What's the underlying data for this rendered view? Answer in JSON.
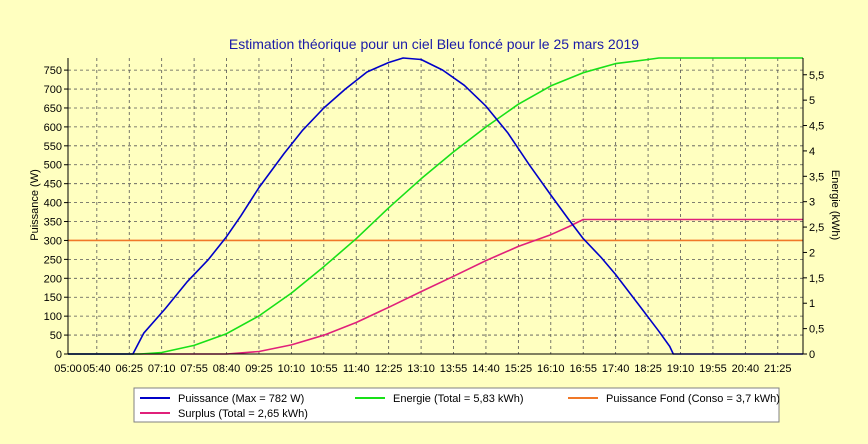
{
  "chart_data": {
    "type": "line",
    "title": "Estimation théorique pour un ciel Bleu foncé pour le 25 mars 2019",
    "ylabel_left": "Puissance (W)",
    "ylabel_right": "Energie (kWh)",
    "ylim_left": [
      0,
      782
    ],
    "ylim_right": [
      0,
      5.83
    ],
    "left_ticks": [
      "0",
      "50",
      "100",
      "150",
      "200",
      "250",
      "300",
      "350",
      "400",
      "450",
      "500",
      "550",
      "600",
      "650",
      "700",
      "750"
    ],
    "right_ticks": [
      "0",
      "0,5",
      "1",
      "1,5",
      "2",
      "2,5",
      "3",
      "3,5",
      "4",
      "4,5",
      "5",
      "5,5"
    ],
    "x_ticks": [
      "05:00",
      "05:40",
      "06:25",
      "07:10",
      "07:55",
      "08:40",
      "09:25",
      "10:10",
      "10:55",
      "11:40",
      "12:25",
      "13:10",
      "13:55",
      "14:40",
      "15:25",
      "16:10",
      "16:55",
      "17:40",
      "18:25",
      "19:10",
      "19:55",
      "20:40",
      "21:25"
    ],
    "grid": true,
    "legend_position": "bottom",
    "series": [
      {
        "name": "Puissance (Max = 782 W)",
        "color": "#0000c8",
        "axis": "left",
        "points": [
          [
            "05:00",
            0
          ],
          [
            "06:30",
            0
          ],
          [
            "06:45",
            55
          ],
          [
            "07:15",
            120
          ],
          [
            "07:45",
            190
          ],
          [
            "08:15",
            250
          ],
          [
            "08:40",
            310
          ],
          [
            "09:00",
            365
          ],
          [
            "09:25",
            440
          ],
          [
            "10:00",
            530
          ],
          [
            "10:25",
            590
          ],
          [
            "10:55",
            650
          ],
          [
            "11:25",
            700
          ],
          [
            "11:55",
            745
          ],
          [
            "12:25",
            770
          ],
          [
            "12:45",
            782
          ],
          [
            "13:10",
            778
          ],
          [
            "13:40",
            750
          ],
          [
            "14:10",
            710
          ],
          [
            "14:40",
            655
          ],
          [
            "15:10",
            585
          ],
          [
            "15:40",
            500
          ],
          [
            "16:10",
            420
          ],
          [
            "16:35",
            355
          ],
          [
            "16:55",
            305
          ],
          [
            "17:20",
            255
          ],
          [
            "17:40",
            210
          ],
          [
            "18:10",
            135
          ],
          [
            "18:40",
            60
          ],
          [
            "18:55",
            20
          ],
          [
            "19:00",
            0
          ],
          [
            "22:00",
            0
          ]
        ]
      },
      {
        "name": "Energie (Total = 5,83 kWh)",
        "color": "#18e018",
        "axis": "right",
        "points": [
          [
            "05:00",
            0
          ],
          [
            "06:40",
            0
          ],
          [
            "07:10",
            0.03
          ],
          [
            "07:55",
            0.17
          ],
          [
            "08:40",
            0.4
          ],
          [
            "09:25",
            0.75
          ],
          [
            "10:10",
            1.2
          ],
          [
            "10:55",
            1.72
          ],
          [
            "11:40",
            2.27
          ],
          [
            "12:25",
            2.88
          ],
          [
            "13:10",
            3.45
          ],
          [
            "13:55",
            3.98
          ],
          [
            "14:40",
            4.47
          ],
          [
            "15:25",
            4.92
          ],
          [
            "16:10",
            5.28
          ],
          [
            "16:55",
            5.54
          ],
          [
            "17:40",
            5.72
          ],
          [
            "18:25",
            5.8
          ],
          [
            "18:40",
            5.83
          ],
          [
            "22:00",
            5.83
          ]
        ]
      },
      {
        "name": "Puissance Fond (Conso = 3,7 kWh)",
        "color": "#f07828",
        "axis": "left",
        "points": [
          [
            "05:00",
            300
          ],
          [
            "22:00",
            300
          ]
        ]
      },
      {
        "name": "Surplus (Total = 2,65 kWh)",
        "color": "#e0207a",
        "axis": "right",
        "points": [
          [
            "05:00",
            0
          ],
          [
            "08:40",
            0
          ],
          [
            "09:25",
            0.05
          ],
          [
            "10:10",
            0.18
          ],
          [
            "10:55",
            0.37
          ],
          [
            "11:40",
            0.62
          ],
          [
            "12:25",
            0.92
          ],
          [
            "13:10",
            1.23
          ],
          [
            "13:55",
            1.53
          ],
          [
            "14:40",
            1.84
          ],
          [
            "15:25",
            2.12
          ],
          [
            "16:10",
            2.35
          ],
          [
            "16:35",
            2.51
          ],
          [
            "16:55",
            2.65
          ],
          [
            "22:00",
            2.65
          ]
        ]
      }
    ]
  }
}
